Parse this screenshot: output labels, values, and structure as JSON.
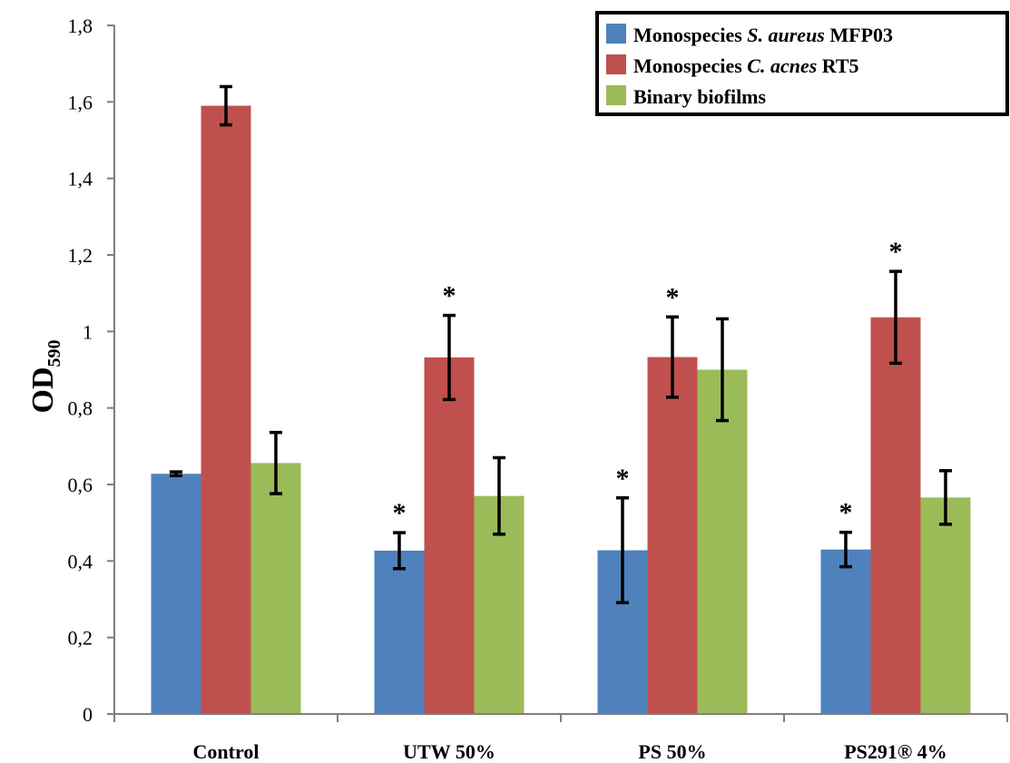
{
  "chart_data": {
    "type": "bar",
    "ylabel": "OD",
    "ylabel_subscript": "590",
    "ylim": [
      0,
      1.8
    ],
    "yticks": [
      {
        "value": 0,
        "label": "0"
      },
      {
        "value": 0.2,
        "label": "0,2"
      },
      {
        "value": 0.4,
        "label": "0,4"
      },
      {
        "value": 0.6,
        "label": "0,6"
      },
      {
        "value": 0.8,
        "label": "0,8"
      },
      {
        "value": 1.0,
        "label": "1"
      },
      {
        "value": 1.2,
        "label": "1,2"
      },
      {
        "value": 1.4,
        "label": "1,4"
      },
      {
        "value": 1.6,
        "label": "1,6"
      },
      {
        "value": 1.8,
        "label": "1,8"
      }
    ],
    "categories": [
      "Control",
      "UTW 50%",
      "PS 50%",
      "PS291® 4%"
    ],
    "series": [
      {
        "legend": [
          {
            "text": "Monospecies ",
            "italic": false
          },
          {
            "text": "S. aureus",
            "italic": true
          },
          {
            "text": " MFP03",
            "italic": false
          }
        ],
        "color": "#4F81BD",
        "values": [
          0.628,
          0.427,
          0.428,
          0.43
        ],
        "errors": [
          0.005,
          0.047,
          0.137,
          0.045
        ],
        "significant": [
          false,
          true,
          true,
          true
        ]
      },
      {
        "legend": [
          {
            "text": "Monospecies ",
            "italic": false
          },
          {
            "text": "C. acnes",
            "italic": true
          },
          {
            "text": " RT5",
            "italic": false
          }
        ],
        "color": "#C0504D",
        "values": [
          1.59,
          0.932,
          0.933,
          1.037
        ],
        "errors": [
          0.05,
          0.11,
          0.105,
          0.12
        ],
        "significant": [
          false,
          true,
          true,
          true
        ]
      },
      {
        "legend": [
          {
            "text": "Binary biofilms",
            "italic": false
          }
        ],
        "color": "#9BBB59",
        "values": [
          0.656,
          0.57,
          0.9,
          0.566
        ],
        "errors": [
          0.08,
          0.1,
          0.133,
          0.07
        ],
        "significant": [
          false,
          false,
          false,
          false
        ]
      }
    ],
    "significance_marker": "*",
    "legend_position": "top-right",
    "grid": false
  }
}
